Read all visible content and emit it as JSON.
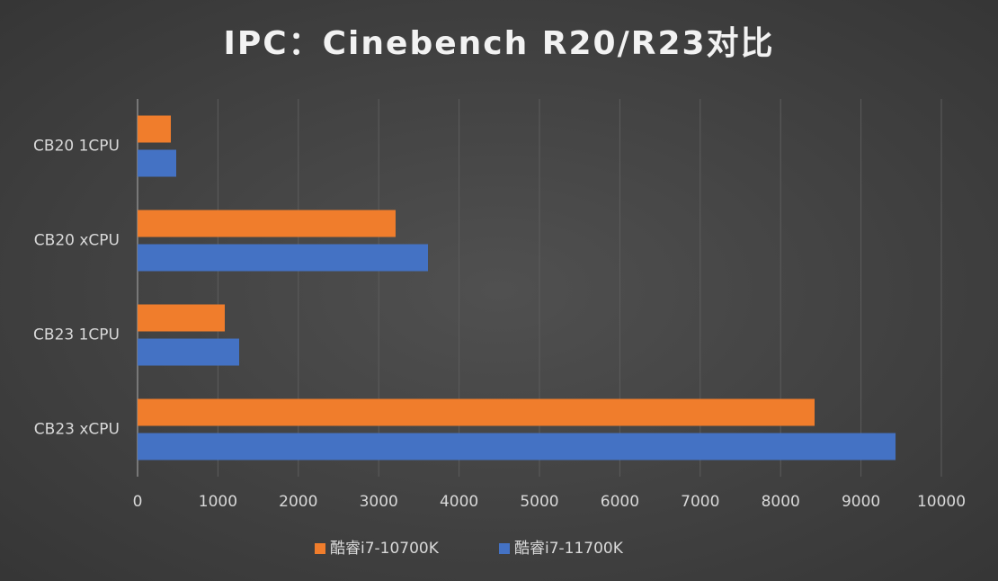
{
  "chart_data": {
    "type": "hbar",
    "title": "IPC：Cinebench R20/R23对比",
    "categories": [
      "CB20 1CPU",
      "CB20 xCPU",
      "CB23 1CPU",
      "CB23 xCPU"
    ],
    "series": [
      {
        "name": "酷睿i7-10700K",
        "color": "#f07d2c",
        "values": [
          414,
          3210,
          1085,
          8423
        ]
      },
      {
        "name": "酷睿i7-11700K",
        "color": "#4472c4",
        "values": [
          481,
          3613,
          1264,
          9430
        ]
      }
    ],
    "xlim": [
      0,
      10000
    ],
    "xticks": [
      0,
      1000,
      2000,
      3000,
      4000,
      5000,
      6000,
      7000,
      8000,
      9000,
      10000
    ],
    "grid": true,
    "legend": "bottom"
  }
}
